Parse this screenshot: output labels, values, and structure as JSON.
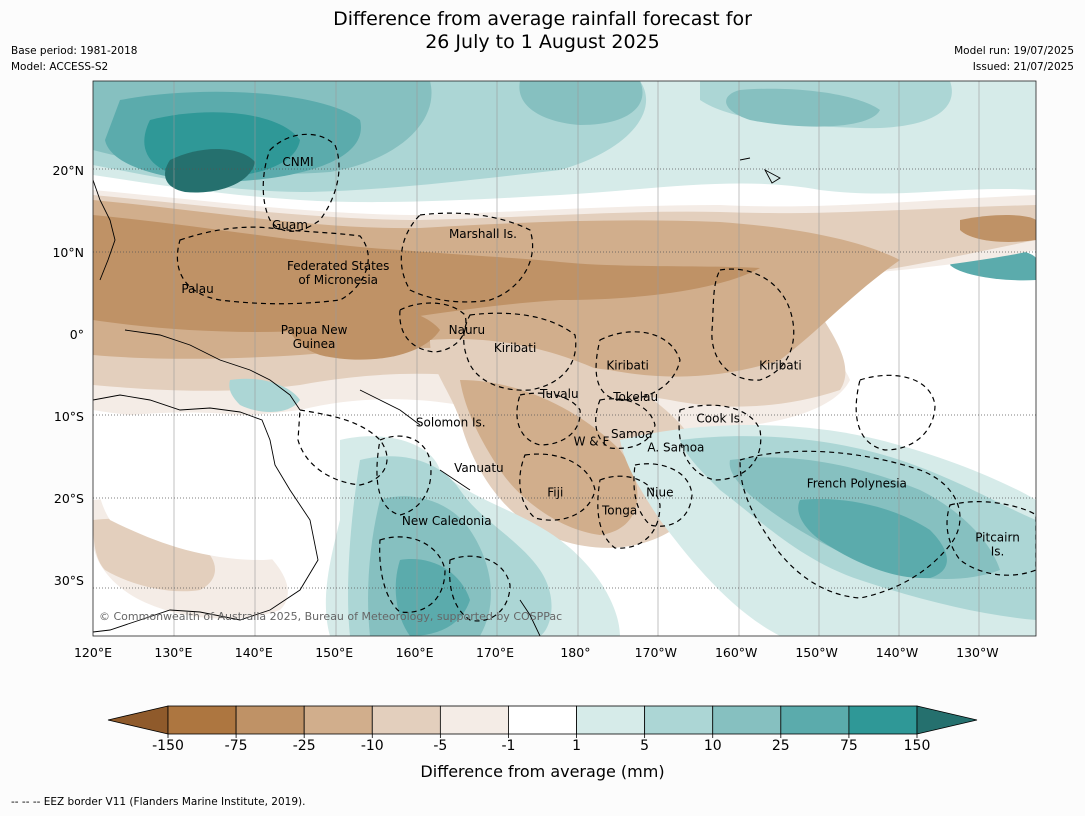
{
  "title_line1": "Difference from average rainfall forecast for",
  "title_line2": "26 July to 1 August 2025",
  "meta": {
    "base_period": "Base period: 1981-2018",
    "model": "Model: ACCESS-S2",
    "model_run": "Model run: 19/07/2025",
    "issued": "Issued: 21/07/2025"
  },
  "copyright": "© Commonwealth of Australia 2025, Bureau of Meteorology, supported by COSPPac",
  "lat_labels": [
    {
      "label": "20°N",
      "lat": 20
    },
    {
      "label": "10°N",
      "lat": 10
    },
    {
      "label": "0°",
      "lat": 0
    },
    {
      "label": "10°S",
      "lat": -10
    },
    {
      "label": "20°S",
      "lat": -20
    },
    {
      "label": "30°S",
      "lat": -30
    }
  ],
  "lon_labels": [
    {
      "label": "120°E",
      "lon": 120
    },
    {
      "label": "130°E",
      "lon": 130
    },
    {
      "label": "140°E",
      "lon": 140
    },
    {
      "label": "150°E",
      "lon": 150
    },
    {
      "label": "160°E",
      "lon": 160
    },
    {
      "label": "170°E",
      "lon": 170
    },
    {
      "label": "180°",
      "lon": 180
    },
    {
      "label": "170°W",
      "lon": 190
    },
    {
      "label": "160°W",
      "lon": 200
    },
    {
      "label": "150°W",
      "lon": 210
    },
    {
      "label": "140°W",
      "lon": 220
    },
    {
      "label": "130°W",
      "lon": 230
    }
  ],
  "places": [
    {
      "name": "CNMI",
      "lon": 145.5,
      "lat": 20.5
    },
    {
      "name": "Guam",
      "lon": 144.5,
      "lat": 12.8
    },
    {
      "name": "Marshall Is.",
      "lon": 168.5,
      "lat": 11.7
    },
    {
      "name": "Federated States",
      "lon": 150.5,
      "lat": 7.8
    },
    {
      "name": "of Micronesia",
      "lon": 150.5,
      "lat": 6.1
    },
    {
      "name": "Palau",
      "lon": 133,
      "lat": 5
    },
    {
      "name": "Papua New",
      "lon": 147.5,
      "lat": 0
    },
    {
      "name": "Guinea",
      "lon": 147.5,
      "lat": -1.7
    },
    {
      "name": "Nauru",
      "lon": 166.5,
      "lat": 0
    },
    {
      "name": "Kiribati",
      "lon": 172.5,
      "lat": -2.2
    },
    {
      "name": "Kiribati",
      "lon": 186.5,
      "lat": -4.3
    },
    {
      "name": "Kiribati",
      "lon": 205.5,
      "lat": -4.3
    },
    {
      "name": "Tuvalu",
      "lon": 178,
      "lat": -7.8
    },
    {
      "name": "Tokelau",
      "lon": 187.5,
      "lat": -8.2
    },
    {
      "name": "Cook Is.",
      "lon": 198,
      "lat": -10.8
    },
    {
      "name": "Solomon Is.",
      "lon": 164.5,
      "lat": -11.3
    },
    {
      "name": "Samoa",
      "lon": 187,
      "lat": -12.7
    },
    {
      "name": "W & F",
      "lon": 182,
      "lat": -13.6
    },
    {
      "name": "A. Samoa",
      "lon": 192.5,
      "lat": -14.3
    },
    {
      "name": "Vanuatu",
      "lon": 168,
      "lat": -16.8
    },
    {
      "name": "French Polynesia",
      "lon": 215,
      "lat": -18.7
    },
    {
      "name": "Fiji",
      "lon": 177.5,
      "lat": -19.8
    },
    {
      "name": "Niue",
      "lon": 190.5,
      "lat": -19.8
    },
    {
      "name": "Tonga",
      "lon": 185.5,
      "lat": -22
    },
    {
      "name": "New Caledonia",
      "lon": 164,
      "lat": -23.3
    },
    {
      "name": "Pitcairn",
      "lon": 232.5,
      "lat": -25.3
    },
    {
      "name": "Is.",
      "lon": 232.5,
      "lat": -27
    }
  ],
  "colorbar": {
    "ticks": [
      "-150",
      "-75",
      "-25",
      "-10",
      "-5",
      "-1",
      "1",
      "5",
      "10",
      "25",
      "75",
      "150"
    ],
    "colors": [
      "#8f5a2b",
      "#ad7640",
      "#bf9266",
      "#d1ae8c",
      "#e3cfbd",
      "#f4ece6",
      "#ffffff",
      "#d6ebe9",
      "#acd6d5",
      "#86c0c0",
      "#5babac",
      "#2f9897",
      "#25706e"
    ],
    "label": "Difference from average (mm)"
  },
  "footer": "--  --  -- EEZ border V11 (Flanders Marine Institute, 2019)."
}
